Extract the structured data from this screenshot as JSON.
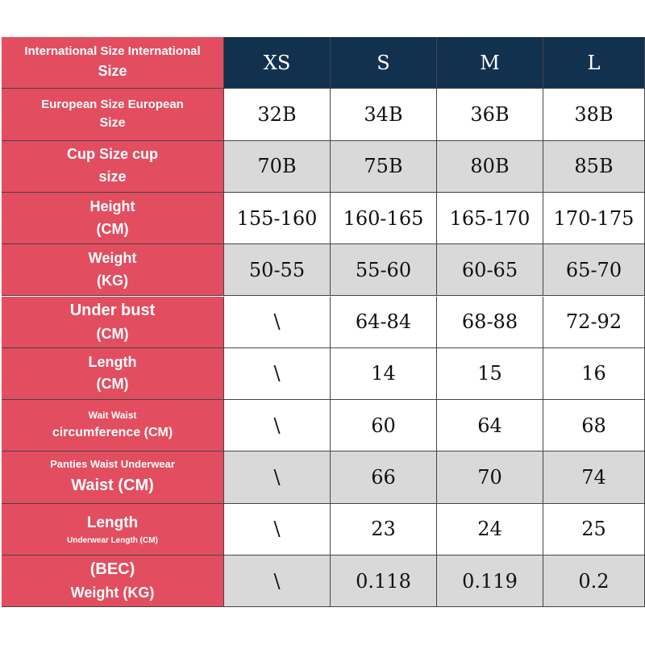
{
  "table": {
    "header": {
      "label": [
        "International Size International",
        "Size"
      ],
      "cells": [
        "XS",
        "S",
        "M",
        "L"
      ]
    },
    "rows": [
      {
        "label": [
          "European Size European",
          "Size"
        ],
        "cells": [
          "32B",
          "34B",
          "36B",
          "38B"
        ]
      },
      {
        "label": [
          "Cup Size cup",
          "size"
        ],
        "cells": [
          "70B",
          "75B",
          "80B",
          "85B"
        ]
      },
      {
        "label": [
          "Height",
          "(CM)"
        ],
        "cells": [
          "155-160",
          "160-165",
          "165-170",
          "170-175"
        ]
      },
      {
        "label": [
          "Weight",
          "(KG)"
        ],
        "cells": [
          "50-55",
          "55-60",
          "60-65",
          "65-70"
        ]
      },
      {
        "label": [
          "Under bust",
          "(CM)"
        ],
        "cells": [
          "\\",
          "64-84",
          "68-88",
          "72-92"
        ]
      },
      {
        "label": [
          "Length",
          "(CM)"
        ],
        "cells": [
          "\\",
          "14",
          "15",
          "16"
        ]
      },
      {
        "label": [
          "Wait Waist",
          "circumference (CM)"
        ],
        "cells": [
          "\\",
          "60",
          "64",
          "68"
        ]
      },
      {
        "label": [
          "Panties Waist Underwear",
          "Waist (CM)"
        ],
        "cells": [
          "\\",
          "66",
          "70",
          "74"
        ]
      },
      {
        "label": [
          "Length",
          "Underwear Length (CM)"
        ],
        "cells": [
          "\\",
          "23",
          "24",
          "25"
        ]
      },
      {
        "label": [
          "(BEC)",
          "Weight (KG)"
        ],
        "cells": [
          "\\",
          "0.118",
          "0.119",
          "0.2"
        ]
      }
    ]
  }
}
